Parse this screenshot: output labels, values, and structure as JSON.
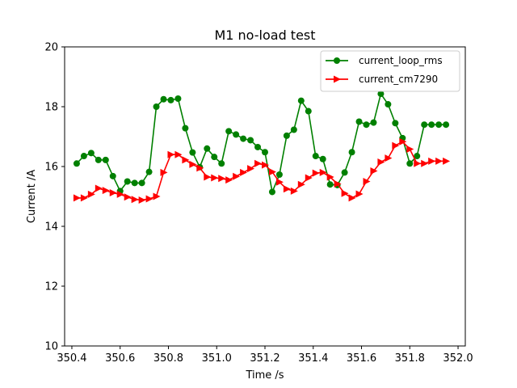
{
  "chart_data": {
    "type": "line",
    "title": "M1 no-load test",
    "xlabel": "Time /s",
    "ylabel": "Current /A",
    "xlim": [
      350.37,
      352.03
    ],
    "ylim": [
      10,
      20
    ],
    "xticks": [
      350.4,
      350.6,
      350.8,
      351.0,
      351.2,
      351.4,
      351.6,
      351.8,
      352.0
    ],
    "xtick_labels": [
      "350.4",
      "350.6",
      "350.8",
      "351.0",
      "351.2",
      "351.4",
      "351.6",
      "351.8",
      "352.0"
    ],
    "yticks": [
      10,
      12,
      14,
      16,
      18,
      20
    ],
    "ytick_labels": [
      "10",
      "12",
      "14",
      "16",
      "18",
      "20"
    ],
    "grid": false,
    "legend_position": "top-right",
    "series": [
      {
        "name": "current_loop_rms",
        "color": "#008000",
        "marker": "circle",
        "x": [
          350.42,
          350.45,
          350.48,
          350.51,
          350.54,
          350.57,
          350.6,
          350.63,
          350.66,
          350.69,
          350.72,
          350.75,
          350.78,
          350.81,
          350.84,
          350.87,
          350.9,
          350.93,
          350.96,
          350.99,
          351.02,
          351.05,
          351.08,
          351.11,
          351.14,
          351.17,
          351.2,
          351.23,
          351.26,
          351.29,
          351.32,
          351.35,
          351.38,
          351.41,
          351.44,
          351.47,
          351.5,
          351.53,
          351.56,
          351.59,
          351.62,
          351.65,
          351.68,
          351.71,
          351.74,
          351.77,
          351.8,
          351.83,
          351.86,
          351.89,
          351.92,
          351.95
        ],
        "y": [
          16.1,
          16.35,
          16.45,
          16.22,
          16.22,
          15.68,
          15.18,
          15.5,
          15.45,
          15.45,
          15.82,
          18.0,
          18.25,
          18.22,
          18.27,
          17.28,
          16.47,
          15.98,
          16.6,
          16.32,
          16.1,
          17.18,
          17.07,
          16.93,
          16.88,
          16.65,
          16.48,
          15.15,
          15.73,
          17.03,
          17.23,
          18.2,
          17.85,
          16.35,
          16.25,
          15.4,
          15.38,
          15.8,
          16.48,
          17.5,
          17.4,
          17.47,
          18.43,
          18.08,
          17.45,
          16.95,
          16.1,
          16.35,
          17.4,
          17.4,
          17.4,
          17.4
        ]
      },
      {
        "name": "current_cm7290",
        "color": "#ff0000",
        "marker": "triangle-right",
        "x": [
          350.42,
          350.45,
          350.48,
          350.51,
          350.54,
          350.57,
          350.6,
          350.63,
          350.66,
          350.69,
          350.72,
          350.75,
          350.78,
          350.81,
          350.84,
          350.87,
          350.9,
          350.93,
          350.96,
          350.99,
          351.02,
          351.05,
          351.08,
          351.11,
          351.14,
          351.17,
          351.2,
          351.23,
          351.26,
          351.29,
          351.32,
          351.35,
          351.38,
          351.41,
          351.44,
          351.47,
          351.5,
          351.53,
          351.56,
          351.59,
          351.62,
          351.65,
          351.68,
          351.71,
          351.74,
          351.77,
          351.8,
          351.83,
          351.86,
          351.89,
          351.92,
          351.95
        ],
        "y": [
          14.95,
          14.95,
          15.07,
          15.27,
          15.2,
          15.12,
          15.07,
          14.98,
          14.9,
          14.88,
          14.92,
          15.0,
          15.8,
          16.4,
          16.4,
          16.22,
          16.07,
          15.95,
          15.65,
          15.62,
          15.6,
          15.55,
          15.67,
          15.8,
          15.93,
          16.1,
          16.05,
          15.82,
          15.48,
          15.25,
          15.18,
          15.4,
          15.62,
          15.78,
          15.8,
          15.65,
          15.42,
          15.1,
          14.95,
          15.08,
          15.5,
          15.85,
          16.15,
          16.28,
          16.7,
          16.83,
          16.58,
          16.1,
          16.1,
          16.18,
          16.18,
          16.18
        ]
      }
    ]
  }
}
